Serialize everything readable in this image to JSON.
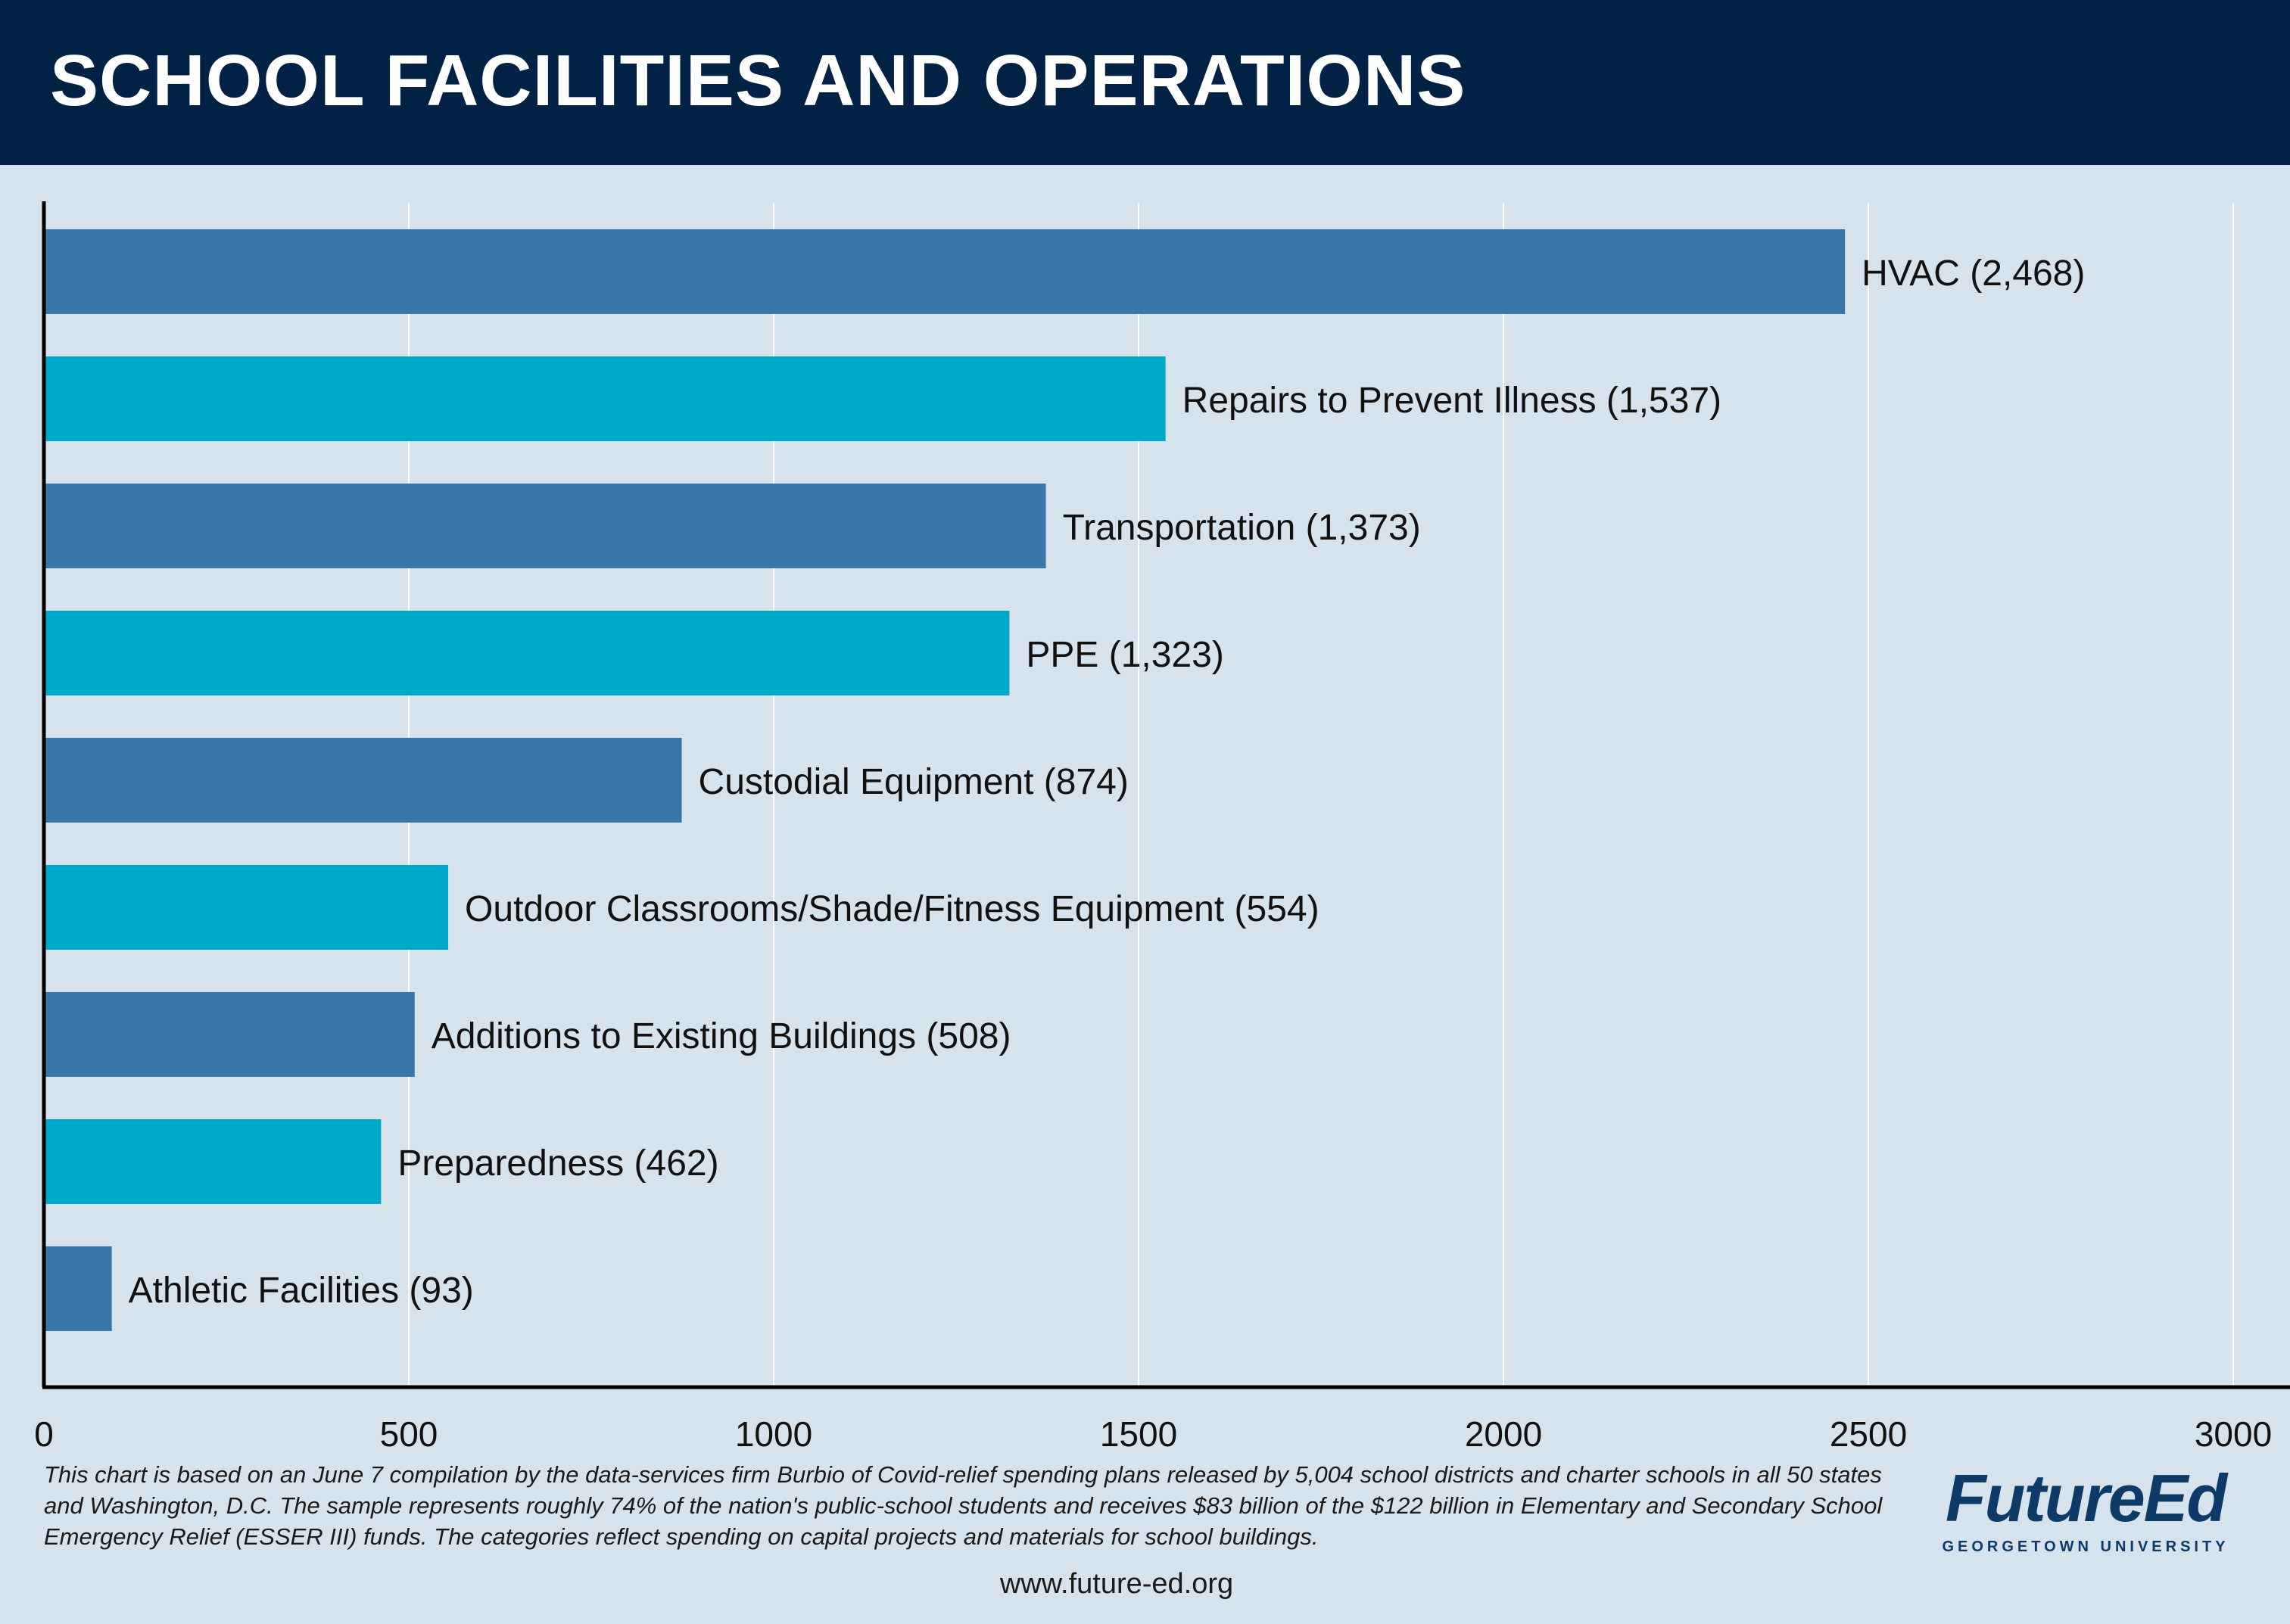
{
  "header": {
    "title": "SCHOOL FACILITIES AND OPERATIONS"
  },
  "chart_data": {
    "type": "bar",
    "orientation": "horizontal",
    "categories": [
      "HVAC (2,468)",
      "Repairs to Prevent Illness (1,537)",
      "Transportation (1,373)",
      "PPE (1,323)",
      "Custodial Equipment (874)",
      "Outdoor Classrooms/Shade/Fitness Equipment (554)",
      "Additions to Existing Buildings (508)",
      "Preparedness (462)",
      "Athletic Facilities (93)"
    ],
    "values": [
      2468,
      1537,
      1373,
      1323,
      874,
      554,
      508,
      462,
      93
    ],
    "xlim": [
      0,
      3000
    ],
    "xticks": [
      0,
      500,
      1000,
      1500,
      2000,
      2500,
      3000
    ],
    "grid": true,
    "colors": [
      "#3875a8",
      "#00a8c8"
    ]
  },
  "footnote": "This chart is based on an June 7 compilation by the data-services firm Burbio of Covid-relief spending plans released by 5,004 school districts and charter schools in all 50 states and Washington, D.C. The sample represents roughly 74% of the nation's public-school students and receives $83 billion of the $122 billion in Elementary and Secondary School Emergency Relief (ESSER III) funds. The categories reflect spending on capital projects and materials for school buildings.",
  "url": "www.future-ed.org",
  "logo": {
    "main": "FutureEd",
    "sub": "GEORGETOWN UNIVERSITY"
  }
}
